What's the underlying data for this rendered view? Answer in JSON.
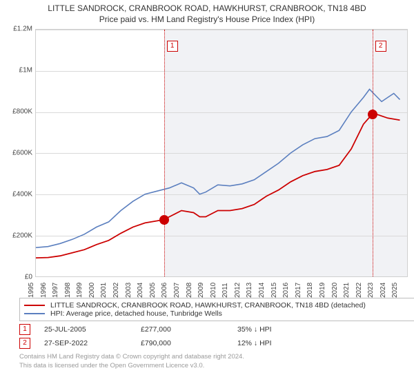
{
  "title_line1": "LITTLE SANDROCK, CRANBROOK ROAD, HAWKHURST, CRANBROOK, TN18 4BD",
  "title_line2": "Price paid vs. HM Land Registry's House Price Index (HPI)",
  "chart": {
    "type": "line",
    "xlim": [
      1995,
      2025.6
    ],
    "ylim": [
      0,
      1200000
    ],
    "ytick_step": 200000,
    "ytick_labels": [
      "£0",
      "£200K",
      "£400K",
      "£600K",
      "£800K",
      "£1M",
      "£1.2M"
    ],
    "xticks": [
      1995,
      1996,
      1997,
      1998,
      1999,
      2000,
      2001,
      2002,
      2003,
      2004,
      2005,
      2006,
      2007,
      2008,
      2009,
      2010,
      2011,
      2012,
      2013,
      2014,
      2015,
      2016,
      2017,
      2018,
      2019,
      2020,
      2021,
      2022,
      2023,
      2024,
      2025
    ],
    "background_color": "#ffffff",
    "grid_color": "#d9d9d9",
    "axis_color": "#bfbfbf",
    "shade_color": "#f1f2f5",
    "shade_from_year": 2005.56,
    "series": [
      {
        "name": "property",
        "color": "#cc0000",
        "width": 1.8,
        "points": [
          [
            1995,
            90000
          ],
          [
            1996,
            92000
          ],
          [
            1997,
            100000
          ],
          [
            1998,
            115000
          ],
          [
            1999,
            130000
          ],
          [
            2000,
            155000
          ],
          [
            2001,
            175000
          ],
          [
            2002,
            210000
          ],
          [
            2003,
            240000
          ],
          [
            2004,
            260000
          ],
          [
            2005,
            270000
          ],
          [
            2005.56,
            277000
          ],
          [
            2006,
            290000
          ],
          [
            2007,
            320000
          ],
          [
            2008,
            310000
          ],
          [
            2008.5,
            290000
          ],
          [
            2009,
            290000
          ],
          [
            2010,
            320000
          ],
          [
            2011,
            320000
          ],
          [
            2012,
            330000
          ],
          [
            2013,
            350000
          ],
          [
            2014,
            390000
          ],
          [
            2015,
            420000
          ],
          [
            2016,
            460000
          ],
          [
            2017,
            490000
          ],
          [
            2018,
            510000
          ],
          [
            2019,
            520000
          ],
          [
            2020,
            540000
          ],
          [
            2021,
            620000
          ],
          [
            2022,
            740000
          ],
          [
            2022.74,
            790000
          ],
          [
            2023,
            790000
          ],
          [
            2024,
            770000
          ],
          [
            2025,
            760000
          ]
        ]
      },
      {
        "name": "hpi",
        "color": "#5b7fbf",
        "width": 1.6,
        "points": [
          [
            1995,
            140000
          ],
          [
            1996,
            145000
          ],
          [
            1997,
            160000
          ],
          [
            1998,
            180000
          ],
          [
            1999,
            205000
          ],
          [
            2000,
            240000
          ],
          [
            2001,
            265000
          ],
          [
            2002,
            320000
          ],
          [
            2003,
            365000
          ],
          [
            2004,
            400000
          ],
          [
            2005,
            415000
          ],
          [
            2006,
            430000
          ],
          [
            2007,
            455000
          ],
          [
            2008,
            430000
          ],
          [
            2008.5,
            400000
          ],
          [
            2009,
            410000
          ],
          [
            2010,
            445000
          ],
          [
            2011,
            440000
          ],
          [
            2012,
            450000
          ],
          [
            2013,
            470000
          ],
          [
            2014,
            510000
          ],
          [
            2015,
            550000
          ],
          [
            2016,
            600000
          ],
          [
            2017,
            640000
          ],
          [
            2018,
            670000
          ],
          [
            2019,
            680000
          ],
          [
            2020,
            710000
          ],
          [
            2021,
            800000
          ],
          [
            2022,
            870000
          ],
          [
            2022.5,
            910000
          ],
          [
            2023,
            880000
          ],
          [
            2023.5,
            850000
          ],
          [
            2024,
            870000
          ],
          [
            2024.5,
            890000
          ],
          [
            2025,
            860000
          ]
        ]
      }
    ],
    "events": [
      {
        "n": "1",
        "year": 2005.56,
        "value": 277000,
        "color": "#cc0000"
      },
      {
        "n": "2",
        "year": 2022.74,
        "value": 790000,
        "color": "#cc0000"
      }
    ]
  },
  "legend": {
    "items": [
      {
        "color": "#cc0000",
        "text": "LITTLE SANDROCK, CRANBROOK ROAD, HAWKHURST, CRANBROOK, TN18 4BD (detached)"
      },
      {
        "color": "#5b7fbf",
        "text": "HPI: Average price, detached house, Tunbridge Wells"
      }
    ]
  },
  "event_table": [
    {
      "n": "1",
      "color": "#cc0000",
      "date": "25-JUL-2005",
      "price": "£277,000",
      "delta": "35% ↓ HPI"
    },
    {
      "n": "2",
      "color": "#cc0000",
      "date": "27-SEP-2022",
      "price": "£790,000",
      "delta": "12% ↓ HPI"
    }
  ],
  "footer_line1": "Contains HM Land Registry data © Crown copyright and database right 2024.",
  "footer_line2": "This data is licensed under the Open Government Licence v3.0."
}
